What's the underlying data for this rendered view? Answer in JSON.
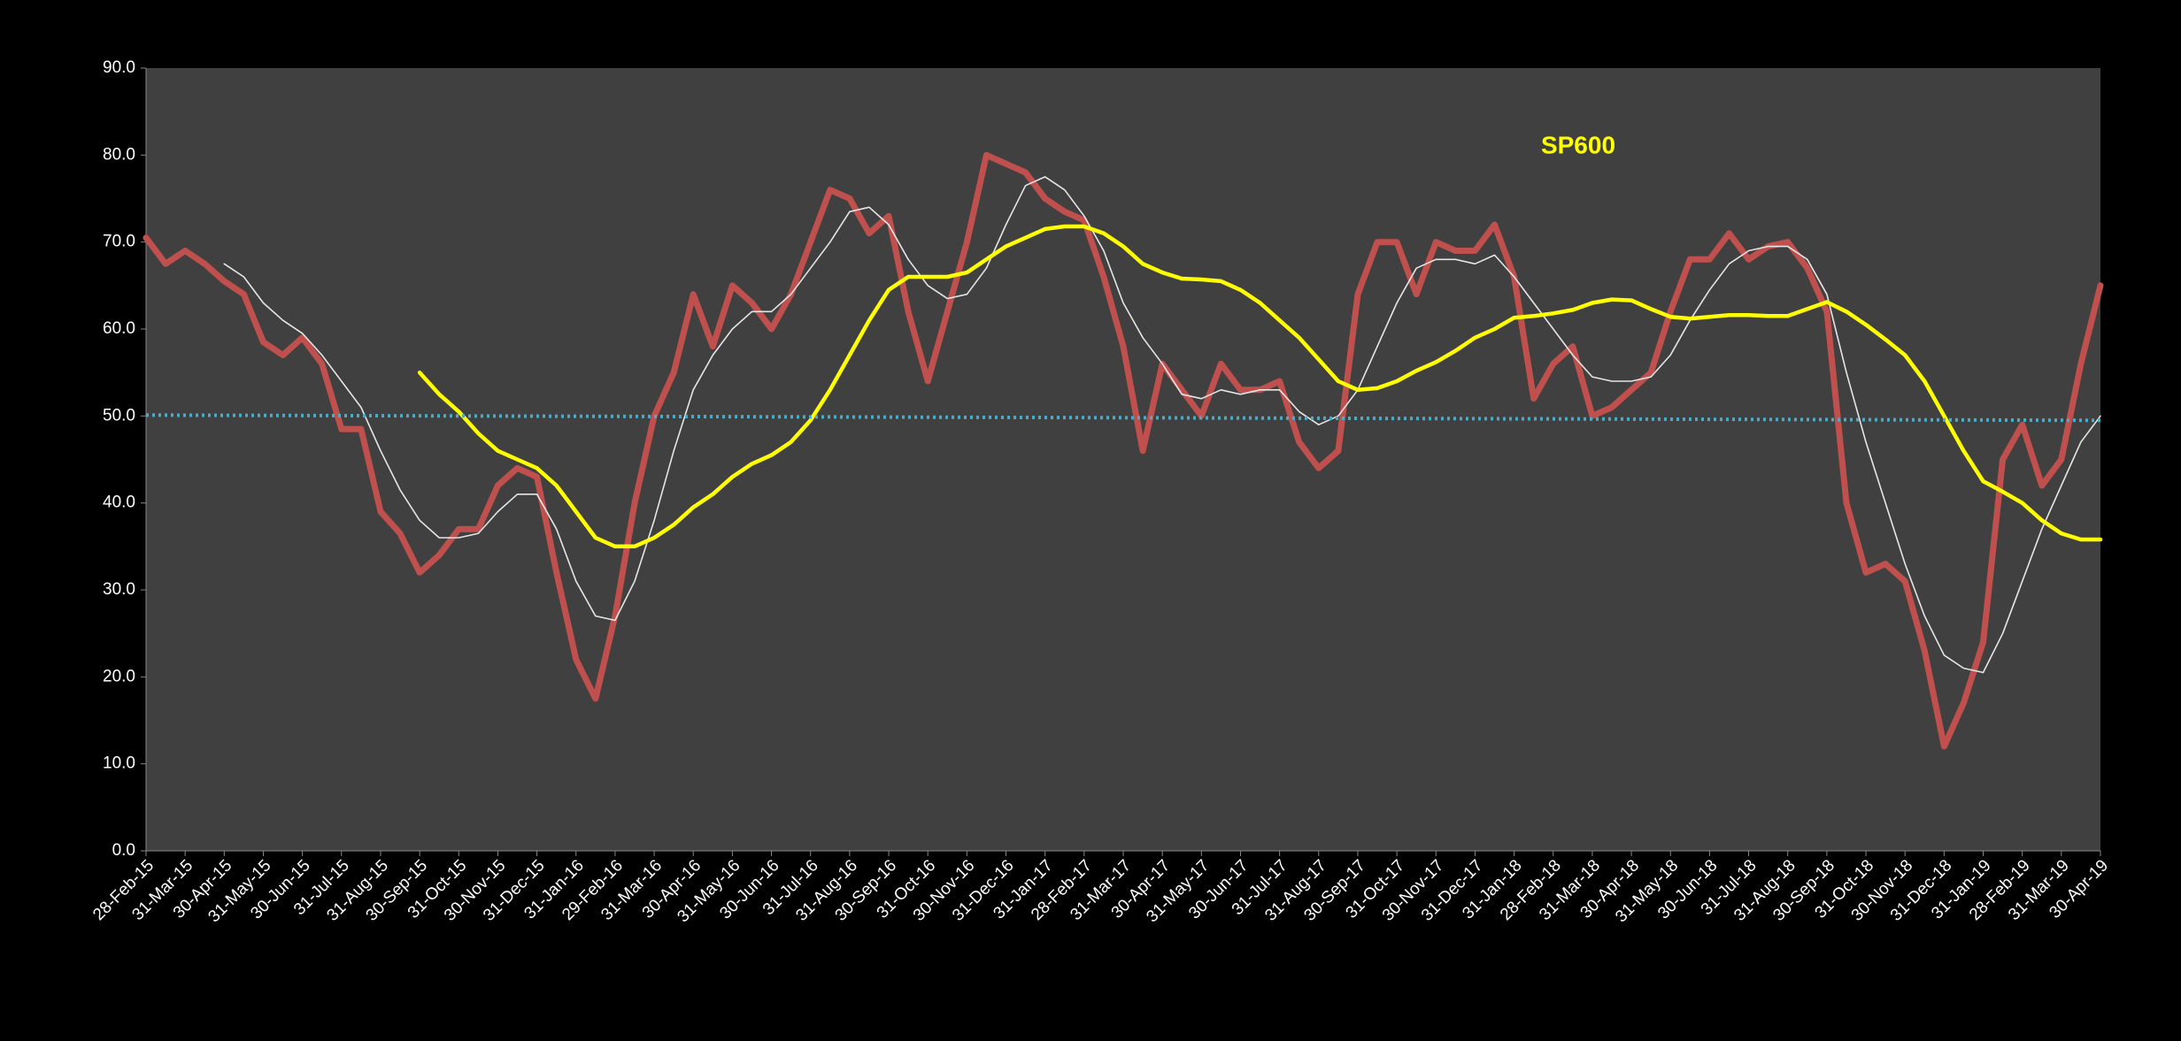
{
  "chart_data": {
    "type": "line",
    "title": "SP600",
    "categories": [
      "28-Feb-15",
      null,
      "31-Mar-15",
      null,
      "30-Apr-15",
      null,
      "31-May-15",
      null,
      "30-Jun-15",
      null,
      "31-Jul-15",
      null,
      "31-Aug-15",
      null,
      "30-Sep-15",
      null,
      "31-Oct-15",
      null,
      "30-Nov-15",
      null,
      "31-Dec-15",
      null,
      "31-Jan-16",
      null,
      "29-Feb-16",
      null,
      "31-Mar-16",
      null,
      "30-Apr-16",
      null,
      "31-May-16",
      null,
      "30-Jun-16",
      null,
      "31-Jul-16",
      null,
      "31-Aug-16",
      null,
      "30-Sep-16",
      null,
      "31-Oct-16",
      null,
      "30-Nov-16",
      null,
      "31-Dec-16",
      null,
      "31-Jan-17",
      null,
      "28-Feb-17",
      null,
      "31-Mar-17",
      null,
      "30-Apr-17",
      null,
      "31-May-17",
      null,
      "30-Jun-17",
      null,
      "31-Jul-17",
      null,
      "31-Aug-17",
      null,
      "30-Sep-17",
      null,
      "31-Oct-17",
      null,
      "30-Nov-17",
      null,
      "31-Dec-17",
      null,
      "31-Jan-18",
      null,
      "28-Feb-18",
      null,
      "31-Mar-18",
      null,
      "30-Apr-18",
      null,
      "31-May-18",
      null,
      "30-Jun-18",
      null,
      "31-Jul-18",
      null,
      "31-Aug-18",
      null,
      "30-Sep-18",
      null,
      "31-Oct-18",
      null,
      "30-Nov-18",
      null,
      "31-Dec-18",
      null,
      "31-Jan-19",
      null,
      "28-Feb-19",
      null,
      "31-Mar-19",
      null,
      "30-Apr-19"
    ],
    "series": [
      {
        "color": "#c0504d",
        "width": 7,
        "values": [
          70.5,
          67.5,
          69,
          67.5,
          65.5,
          64,
          58.5,
          57,
          59,
          56,
          48.5,
          48.5,
          39,
          36.5,
          32,
          34,
          37,
          37,
          42,
          44,
          43,
          32,
          22,
          17.5,
          27,
          40,
          50,
          55,
          64,
          58,
          65,
          63,
          60,
          64,
          70,
          76,
          75,
          71,
          73,
          62,
          54,
          62,
          70,
          80,
          79,
          78,
          75,
          73.5,
          72.5,
          66,
          58,
          46,
          56,
          53,
          50,
          56,
          53,
          53,
          54,
          47,
          44,
          46,
          64,
          70,
          70,
          64,
          70,
          69,
          69,
          72,
          66,
          52,
          56,
          58,
          50,
          51,
          53,
          55,
          62,
          68,
          68,
          71,
          68,
          69.5,
          70,
          67,
          62,
          40,
          32,
          33,
          31,
          23,
          12,
          17,
          24,
          45,
          49,
          42,
          45,
          56,
          65
        ]
      },
      {
        "color": "#e6e6e6",
        "width": 1.6,
        "values": [
          null,
          null,
          null,
          null,
          67.5,
          66,
          63,
          61,
          59.5,
          57,
          54,
          51,
          46,
          41.5,
          38,
          36,
          36,
          36.5,
          39,
          41,
          41,
          37,
          31,
          27,
          26.5,
          31,
          38,
          46,
          53,
          57,
          60,
          62,
          62,
          64,
          67,
          70,
          73.5,
          74,
          72,
          68,
          65,
          63.5,
          64,
          67,
          72,
          76.5,
          77.5,
          76,
          73,
          69,
          63,
          59,
          56,
          52.5,
          52,
          53,
          52.5,
          53,
          53,
          50.5,
          49,
          50,
          53,
          58,
          63,
          67,
          68,
          68,
          67.5,
          68.5,
          66,
          63,
          60,
          57,
          54.5,
          54,
          54,
          54.5,
          57,
          61,
          64.5,
          67.5,
          69,
          69.5,
          69.5,
          68,
          64,
          55,
          47,
          40,
          33,
          27,
          22.5,
          21,
          20.5,
          25,
          31,
          37,
          42,
          47,
          50
        ]
      },
      {
        "color": "#ffff00",
        "width": 4.5,
        "values": [
          null,
          null,
          null,
          null,
          null,
          null,
          null,
          null,
          null,
          null,
          null,
          null,
          null,
          null,
          55,
          52.5,
          50.5,
          48,
          46,
          45,
          44,
          42,
          39,
          36,
          35,
          35,
          36,
          37.5,
          39.5,
          41,
          43,
          44.5,
          45.5,
          47,
          49.5,
          53,
          57,
          61,
          64.5,
          66,
          66,
          66,
          66.5,
          68,
          69.5,
          70.5,
          71.5,
          71.8,
          71.8,
          71,
          69.5,
          67.5,
          66.5,
          65.8,
          65.7,
          65.5,
          64.5,
          63,
          61,
          59,
          56.5,
          54,
          53,
          53.2,
          54,
          55.2,
          56.2,
          57.5,
          59,
          60,
          61.3,
          61.5,
          61.8,
          62.2,
          63,
          63.4,
          63.3,
          62.3,
          61.4,
          61.2,
          61.4,
          61.6,
          61.6,
          61.5,
          61.5,
          62.3,
          63.1,
          62,
          60.5,
          58.8,
          57,
          54,
          50,
          46,
          42.5,
          41.3,
          40,
          38,
          36.5,
          35.8,
          35.8
        ]
      }
    ],
    "trend_line": {
      "values": [
        50.1,
        49.5
      ],
      "color": "#4bacc6"
    },
    "ylim": [
      0,
      90
    ],
    "yticks": [
      {
        "value": 0,
        "label": "0.0"
      },
      {
        "value": 10,
        "label": "10.0"
      },
      {
        "value": 20,
        "label": "20.0"
      },
      {
        "value": 30,
        "label": "30.0"
      },
      {
        "value": 40,
        "label": "40.0"
      },
      {
        "value": 50,
        "label": "50.0"
      },
      {
        "value": 60,
        "label": "60.0"
      },
      {
        "value": 70,
        "label": "70.0"
      },
      {
        "value": 80,
        "label": "80.0"
      },
      {
        "value": 90,
        "label": "90.0"
      }
    ],
    "title_color": "#ffff00",
    "plot_background": "#404040"
  }
}
